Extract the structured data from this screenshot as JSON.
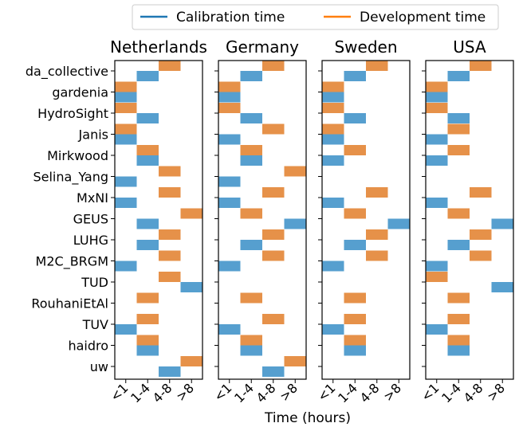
{
  "chart_data": {
    "type": "heatmap",
    "legend": {
      "placement": "top-right",
      "entries": [
        {
          "name": "Calibration time",
          "color": "#1f77b4"
        },
        {
          "name": "Development time",
          "color": "#ff7f0e"
        }
      ]
    },
    "xlabel": "Time (hours)",
    "x_categories": [
      "<1",
      "1-4",
      "4-8",
      ">8"
    ],
    "models": [
      "da_collective",
      "gardenia",
      "HydroSight",
      "Janis",
      "Mirkwood",
      "Selina_Yang",
      "MxNI",
      "GEUS",
      "LUHG",
      "M2C_BRGM",
      "TUD",
      "RouhaniEtAl",
      "TUV",
      "haidro",
      "uw"
    ],
    "cell_colors": {
      "calibration": "#569fcf",
      "development": "#e69149"
    },
    "panels": [
      {
        "title": "Netherlands",
        "calibration": [
          "1-4",
          "<1",
          "1-4",
          "<1",
          "1-4",
          "<1",
          "<1",
          "1-4",
          "1-4",
          "<1",
          ">8",
          null,
          "<1",
          "1-4",
          "4-8"
        ],
        "development": [
          "4-8",
          "<1",
          "<1",
          "<1",
          "1-4",
          "4-8",
          "4-8",
          ">8",
          "4-8",
          "4-8",
          "4-8",
          "1-4",
          "1-4",
          "1-4",
          ">8"
        ]
      },
      {
        "title": "Germany",
        "calibration": [
          "1-4",
          "<1",
          "1-4",
          "<1",
          "1-4",
          "<1",
          "<1",
          ">8",
          "1-4",
          "<1",
          null,
          null,
          "<1",
          "1-4",
          "4-8"
        ],
        "development": [
          "4-8",
          "<1",
          "<1",
          "4-8",
          "1-4",
          ">8",
          "4-8",
          "1-4",
          "4-8",
          "4-8",
          null,
          "1-4",
          "4-8",
          "1-4",
          ">8"
        ]
      },
      {
        "title": "Sweden",
        "calibration": [
          "1-4",
          "<1",
          "1-4",
          "<1",
          "<1",
          null,
          "<1",
          ">8",
          "1-4",
          "<1",
          null,
          null,
          "<1",
          "1-4",
          null
        ],
        "development": [
          "4-8",
          "<1",
          "<1",
          "<1",
          "1-4",
          null,
          "4-8",
          "1-4",
          "4-8",
          "4-8",
          null,
          "1-4",
          "1-4",
          "1-4",
          null
        ]
      },
      {
        "title": "USA",
        "calibration": [
          "1-4",
          "<1",
          "1-4",
          "<1",
          "<1",
          null,
          "<1",
          ">8",
          "1-4",
          "<1",
          ">8",
          null,
          "<1",
          "1-4",
          null
        ],
        "development": [
          "4-8",
          "<1",
          "<1",
          "1-4",
          "1-4",
          null,
          "4-8",
          "1-4",
          "4-8",
          "4-8",
          "<1",
          "1-4",
          "1-4",
          "1-4",
          null
        ]
      }
    ]
  }
}
